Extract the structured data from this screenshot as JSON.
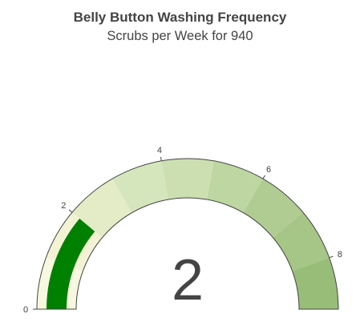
{
  "header": {
    "title": "Belly Button Washing Frequency",
    "subtitle": "Scrubs per Week for 940"
  },
  "chart_data": {
    "type": "gauge",
    "range": [
      0,
      9
    ],
    "value": 2,
    "value_label": "2",
    "tick_values": [
      0,
      2,
      4,
      6,
      8
    ],
    "tick_labels": [
      "0",
      "2",
      "4",
      "6",
      "8"
    ],
    "steps": [
      {
        "range": [
          0,
          1
        ],
        "color": "#f8f8e0"
      },
      {
        "range": [
          1,
          2
        ],
        "color": "#f4f2d4"
      },
      {
        "range": [
          2,
          3
        ],
        "color": "#e3ecc7"
      },
      {
        "range": [
          3,
          4
        ],
        "color": "#d6e6bc"
      },
      {
        "range": [
          4,
          5
        ],
        "color": "#ccdfb1"
      },
      {
        "range": [
          5,
          6
        ],
        "color": "#bed6a1"
      },
      {
        "range": [
          6,
          7
        ],
        "color": "#b0cc93"
      },
      {
        "range": [
          7,
          8
        ],
        "color": "#a5c686"
      },
      {
        "range": [
          8,
          9
        ],
        "color": "#98bd78"
      }
    ],
    "bar_color": "#008000"
  }
}
